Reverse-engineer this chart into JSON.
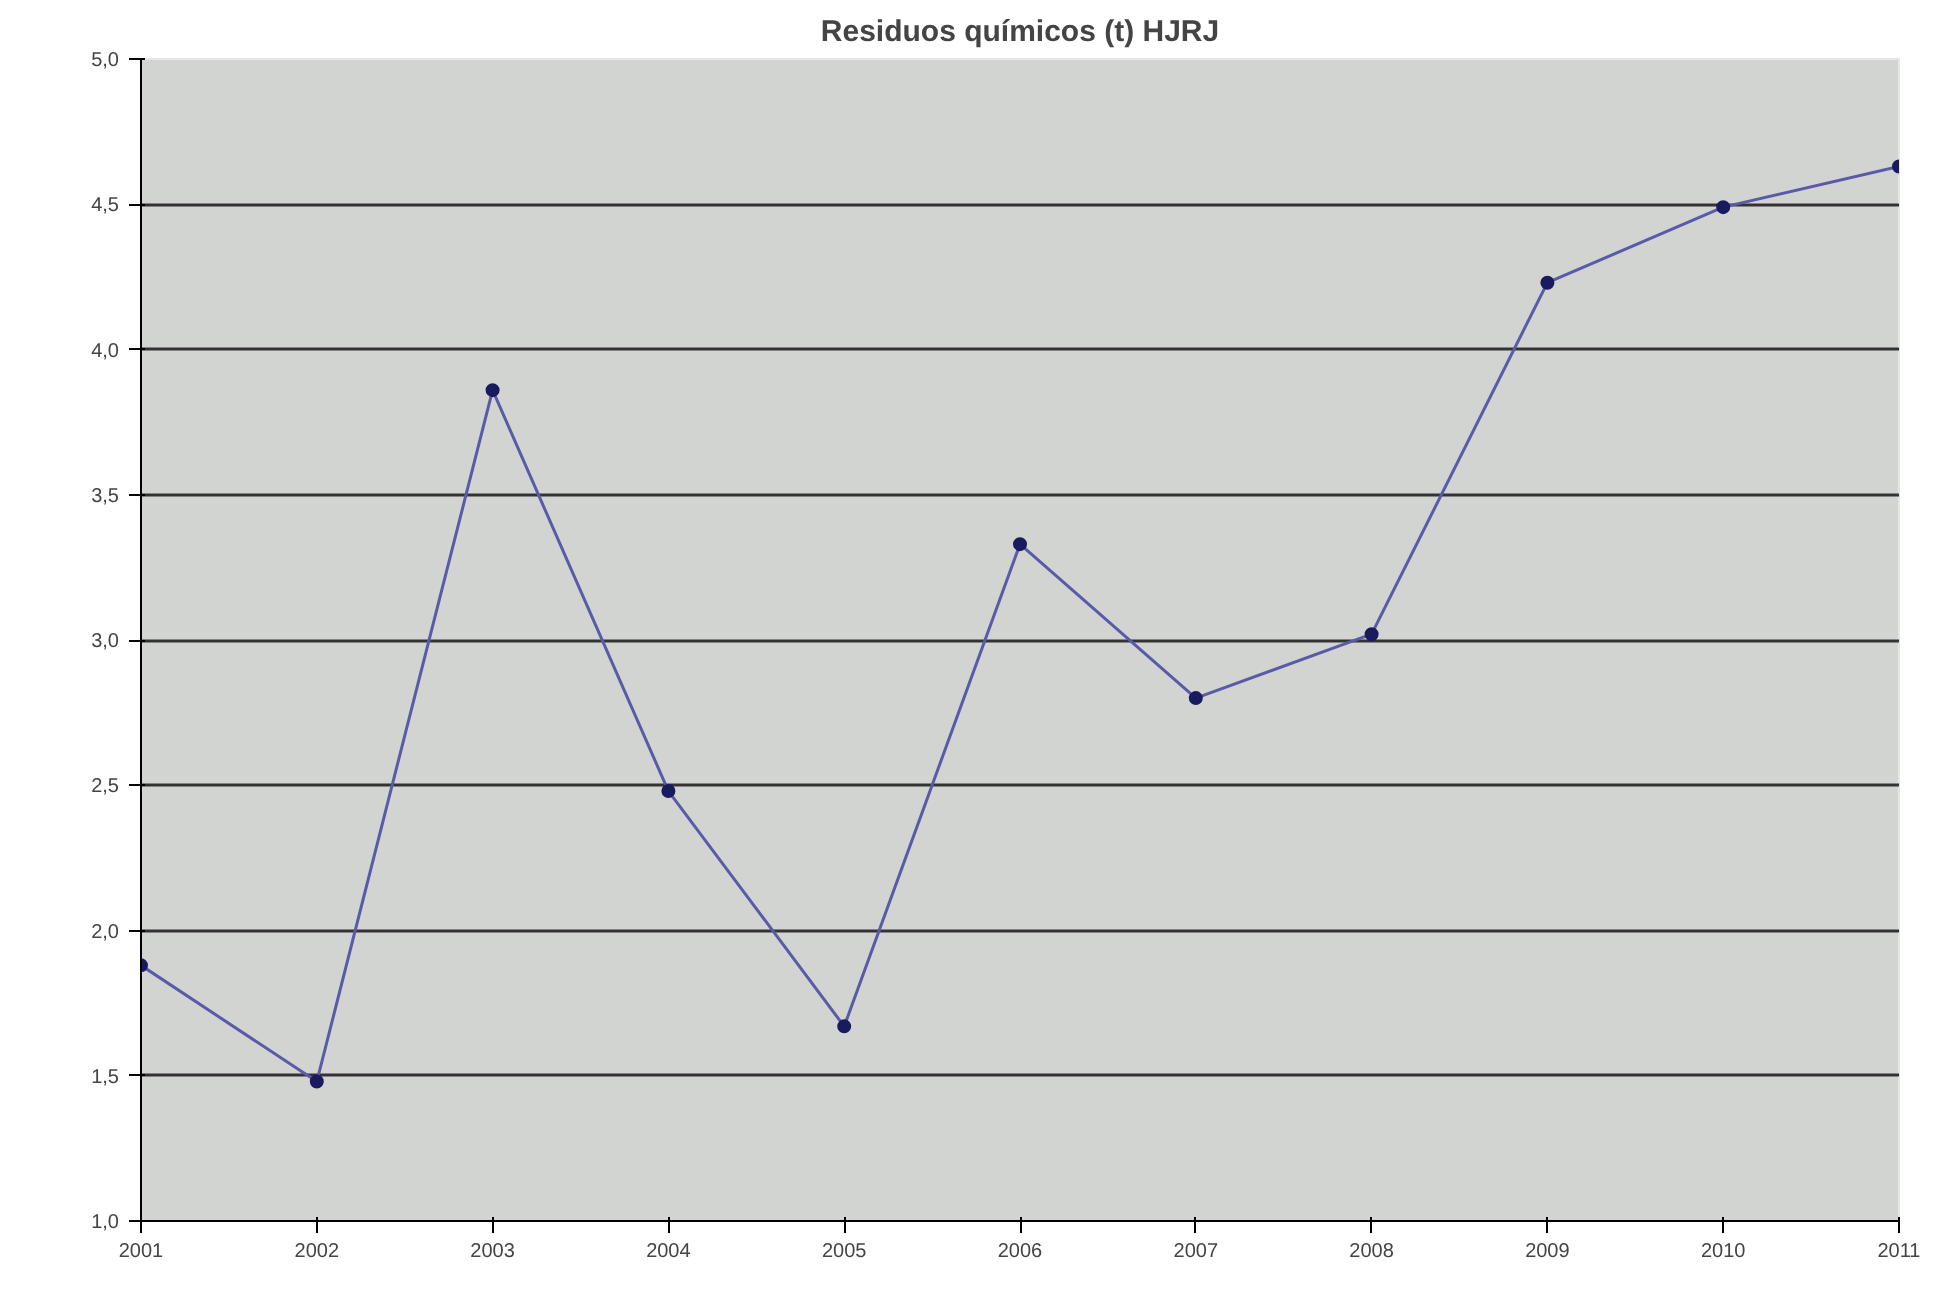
{
  "chart_data": {
    "type": "line",
    "title": "Residuos químicos (t) HJRJ",
    "x": [
      2001,
      2002,
      2003,
      2004,
      2005,
      2006,
      2007,
      2008,
      2009,
      2010,
      2011
    ],
    "series": [
      {
        "color": "#5a5aa8",
        "values": [
          1.88,
          1.48,
          3.86,
          2.48,
          1.67,
          3.33,
          2.8,
          3.02,
          4.23,
          4.49,
          4.63
        ]
      }
    ],
    "xlim": [
      2001,
      2011
    ],
    "xticks": [
      2001,
      2002,
      2003,
      2004,
      2005,
      2006,
      2007,
      2008,
      2009,
      2010,
      2011
    ],
    "ylim": [
      1,
      5
    ],
    "yticks": [
      {
        "value": 1,
        "label": "1,0"
      },
      {
        "value": 1.5,
        "label": "1,5"
      },
      {
        "value": 2,
        "label": "2,0"
      },
      {
        "value": 2.5,
        "label": "2,5"
      },
      {
        "value": 3,
        "label": "3,0"
      },
      {
        "value": 3.5,
        "label": "3,5"
      },
      {
        "value": 4,
        "label": "4,0"
      },
      {
        "value": 4.5,
        "label": "4,5"
      },
      {
        "value": 5,
        "label": "5,0"
      }
    ],
    "grid": "y",
    "marker": "circle"
  }
}
